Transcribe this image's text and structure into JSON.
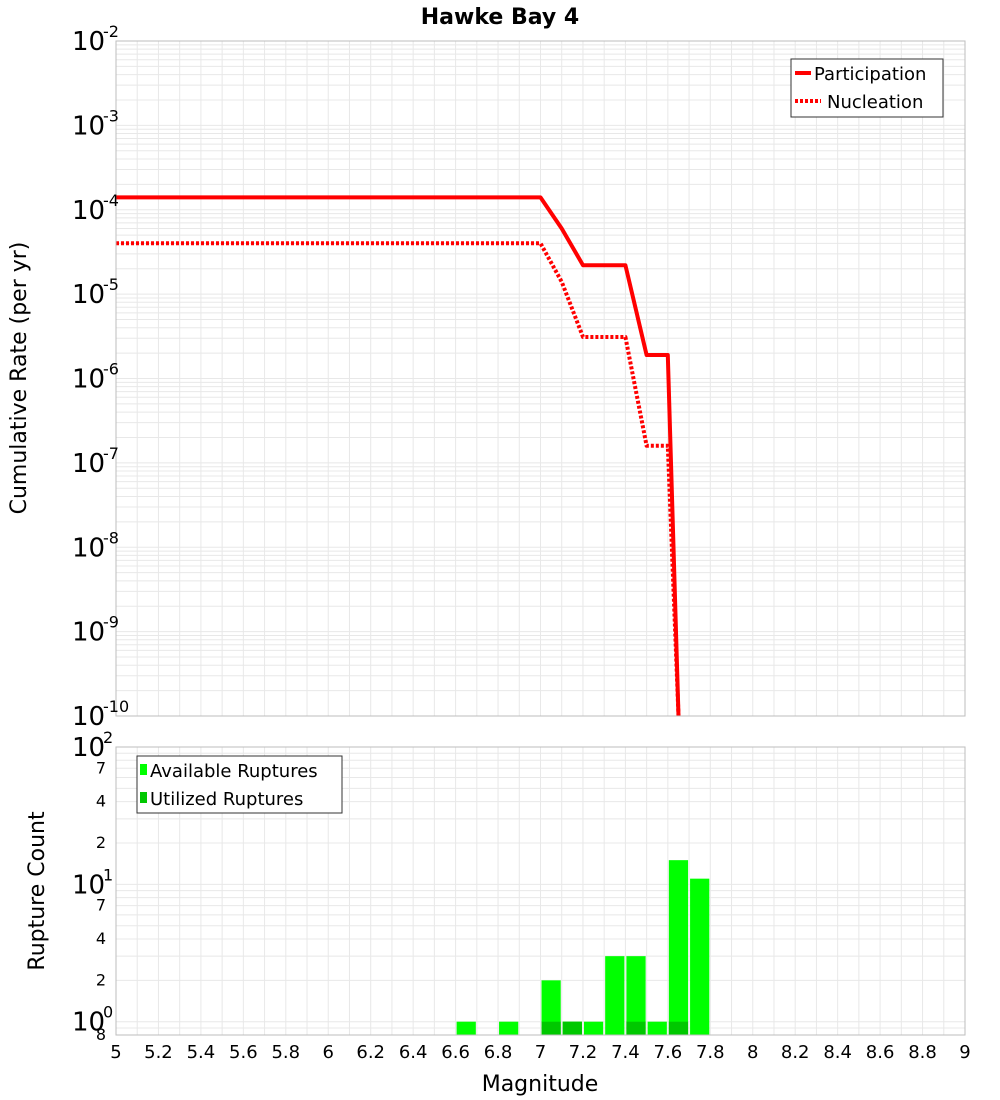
{
  "title": "Hawke Bay 4",
  "xlabel": "Magnitude",
  "colors": {
    "participation": "#ff0000",
    "nucleation": "#ff0000",
    "available": "#00ff00",
    "utilized": "#00c800",
    "grid": "#e8e8e8",
    "frame": "#bdbdbd"
  },
  "top_panel": {
    "ylabel": "Cumulative Rate (per yr)",
    "legend": [
      "Participation",
      "Nucleation"
    ],
    "y_tick_labels": [
      {
        "base": "10",
        "exp": "-2"
      },
      {
        "base": "10",
        "exp": "-3"
      },
      {
        "base": "10",
        "exp": "-4"
      },
      {
        "base": "10",
        "exp": "-5"
      },
      {
        "base": "10",
        "exp": "-6"
      },
      {
        "base": "10",
        "exp": "-7"
      },
      {
        "base": "10",
        "exp": "-8"
      },
      {
        "base": "10",
        "exp": "-9"
      },
      {
        "base": "10",
        "exp": "-10"
      }
    ]
  },
  "bottom_panel": {
    "ylabel": "Rupture Count",
    "legend": [
      "Available Ruptures",
      "Utilized Ruptures"
    ],
    "y_tick_labels": [
      {
        "value": 100,
        "text": "10",
        "exp": "2",
        "major": true
      },
      {
        "value": 70,
        "text": "7",
        "major": false
      },
      {
        "value": 40,
        "text": "4",
        "major": false
      },
      {
        "value": 20,
        "text": "2",
        "major": false
      },
      {
        "value": 10,
        "text": "10",
        "exp": "1",
        "major": true
      },
      {
        "value": 7,
        "text": "7",
        "major": false
      },
      {
        "value": 4,
        "text": "4",
        "major": false
      },
      {
        "value": 2,
        "text": "2",
        "major": false
      },
      {
        "value": 1,
        "text": "10",
        "exp": "0",
        "major": true
      },
      {
        "value": 0.8,
        "text": "8",
        "major": false
      }
    ]
  },
  "x_tick_labels": [
    "5",
    "5.2",
    "5.4",
    "5.6",
    "5.8",
    "6",
    "6.2",
    "6.4",
    "6.6",
    "6.8",
    "7",
    "7.2",
    "7.4",
    "7.6",
    "7.8",
    "8",
    "8.2",
    "8.4",
    "8.6",
    "8.8",
    "9"
  ],
  "chart_data": [
    {
      "type": "line",
      "title": "Hawke Bay 4",
      "xlabel": "Magnitude",
      "ylabel": "Cumulative Rate (per yr)",
      "xlim": [
        5,
        9
      ],
      "ylim": [
        1e-10,
        0.01
      ],
      "yscale": "log",
      "grid": true,
      "legend_position": "top-right",
      "series": [
        {
          "name": "Participation",
          "style": "solid",
          "x": [
            5.0,
            7.0,
            7.1,
            7.2,
            7.3,
            7.4,
            7.5,
            7.6,
            7.65
          ],
          "y": [
            0.00014,
            0.00014,
            6e-05,
            2.2e-05,
            2.2e-05,
            2.2e-05,
            1.9e-06,
            1.9e-06,
            1e-10
          ]
        },
        {
          "name": "Nucleation",
          "style": "dotted",
          "x": [
            5.0,
            7.0,
            7.1,
            7.2,
            7.3,
            7.4,
            7.5,
            7.6,
            7.65
          ],
          "y": [
            4e-05,
            4e-05,
            1.4e-05,
            3.1e-06,
            3.1e-06,
            3.1e-06,
            1.6e-07,
            1.6e-07,
            1e-10
          ]
        }
      ]
    },
    {
      "type": "bar",
      "xlabel": "Magnitude",
      "ylabel": "Rupture Count",
      "xlim": [
        5,
        9
      ],
      "ylim": [
        0.8,
        100
      ],
      "yscale": "log",
      "grid": true,
      "legend_position": "top-left",
      "bin_width": 0.1,
      "series": [
        {
          "name": "Available Ruptures",
          "x": [
            6.65,
            6.85,
            7.05,
            7.15,
            7.25,
            7.35,
            7.45,
            7.55,
            7.65,
            7.75
          ],
          "values": [
            1,
            1,
            2,
            1,
            1,
            3,
            3,
            1,
            15,
            11
          ]
        },
        {
          "name": "Utilized Ruptures",
          "x": [
            7.05,
            7.15,
            7.45,
            7.65
          ],
          "values": [
            1,
            1,
            1,
            1
          ]
        }
      ]
    }
  ]
}
